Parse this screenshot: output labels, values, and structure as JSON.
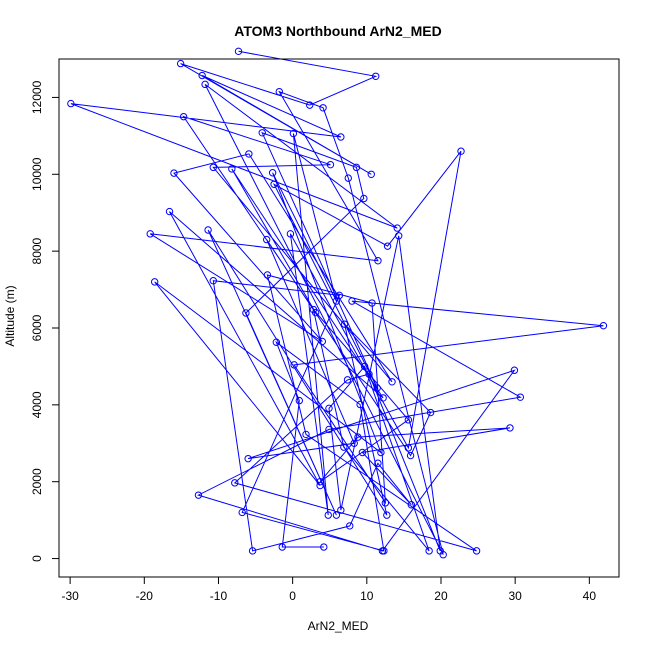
{
  "chart_data": {
    "type": "line",
    "title": "ATOM3 Northbound ArN2_MED",
    "xlabel": "ArN2_MED",
    "ylabel": "Altitude (m)",
    "xlim": [
      -31.5,
      44
    ],
    "ylim": [
      -480,
      13000
    ],
    "xticks": [
      -30,
      -20,
      -10,
      0,
      10,
      20,
      30,
      40
    ],
    "yticks": [
      0,
      2000,
      4000,
      6000,
      8000,
      10000,
      12000
    ],
    "xtick_labels": [
      "-30",
      "-20",
      "-10",
      "0",
      "10",
      "20",
      "30",
      "40"
    ],
    "ytick_labels": [
      "0",
      "2000",
      "4000",
      "6000",
      "8000",
      "10000",
      "12000"
    ],
    "grid": false,
    "legend": "none",
    "markers": "open circles",
    "series": [
      {
        "color": "#0000ff",
        "x": [
          -7.3,
          11.2,
          2.3,
          -15.1,
          10.6,
          -12.2,
          6.5,
          -29.9,
          14.1,
          -11.8,
          20.3,
          7.5,
          4.1,
          -1.8,
          11.5,
          -19.2,
          4.0,
          -16.0,
          -5.9,
          13.4,
          -10.7,
          5.1,
          -14.7,
          3.1,
          -8.2,
          12.2,
          -16.6,
          3.7,
          -18.6,
          11.9,
          -2.7,
          5.9,
          0.1,
          4.8,
          -0.3,
          15.6,
          22.7,
          12.8,
          -2.5,
          11.4,
          -4.1,
          8.6,
          9.6,
          -6.3,
          5.9,
          -11.4,
          12.7,
          7.0,
          18.6,
          15.9,
          -3.5,
          8.3,
          -6.0,
          29.9,
          12.1,
          -12.7,
          4.9,
          30.7,
          8.0,
          41.9,
          0.2,
          12.5,
          10.7,
          -3.4,
          1.8,
          24.8,
          -7.8,
          7.4,
          10.3,
          19.9,
          14.3,
          6.5,
          4.9,
          9.7,
          18.4,
          6.9,
          2.8,
          15.6,
          3.7,
          8.8,
          29.3,
          9.4,
          16.0,
          11.5,
          7.7,
          -5.4,
          -10.7,
          6.3,
          -6.8,
          12.3,
          9.1,
          -2.2,
          0.9,
          -1.4,
          4.2
        ],
        "y": [
          13200,
          12550,
          11800,
          12880,
          10000,
          12570,
          10970,
          11840,
          8600,
          12340,
          100,
          9900,
          11730,
          12150,
          7750,
          8450,
          5650,
          10030,
          10530,
          4600,
          10180,
          10250,
          11500,
          6400,
          10140,
          4180,
          9030,
          1900,
          7200,
          2760,
          10040,
          6700,
          11060,
          1130,
          8450,
          2880,
          10600,
          8130,
          9740,
          4440,
          11080,
          10180,
          9370,
          6390,
          1130,
          8550,
          1130,
          6100,
          3800,
          2680,
          8300,
          3000,
          2600,
          4900,
          200,
          1650,
          3360,
          4200,
          6700,
          6060,
          5040,
          1450,
          6650,
          7380,
          3230,
          200,
          1970,
          4650,
          4800,
          200,
          8400,
          1260,
          3910,
          5000,
          200,
          2900,
          6480,
          3610,
          2000,
          3160,
          3400,
          2760,
          1400,
          2480,
          850,
          200,
          7230,
          6850,
          1200,
          200,
          4010,
          5630,
          4110,
          300,
          300
        ]
      }
    ]
  }
}
